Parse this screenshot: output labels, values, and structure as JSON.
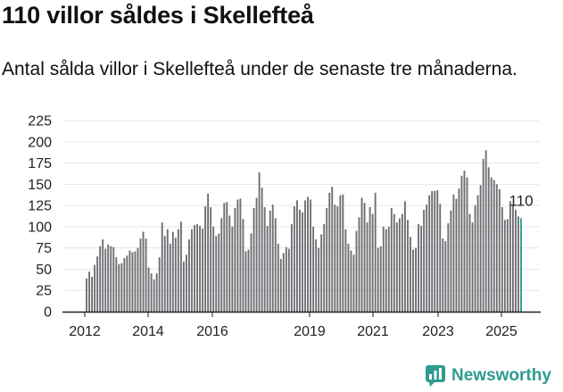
{
  "title": "110 villor såldes i Skellefteå",
  "subtitle": "Antal sålda villor i Skellefteå under de senaste tre månaderna.",
  "brand": {
    "name": "Newsworthy",
    "icon": "newsworthy-logo-icon"
  },
  "colors": {
    "bar": "#6e6e73",
    "highlight": "#2a9d8f",
    "grid": "#e5e5e5",
    "axis": "#222222",
    "brand": "#2f9b8f"
  },
  "chart_data": {
    "type": "bar",
    "title": "110 villor såldes i Skellefteå",
    "xlabel": "",
    "ylabel": "",
    "ylim": [
      0,
      225
    ],
    "yticks": [
      0,
      25,
      50,
      75,
      100,
      125,
      150,
      175,
      200,
      225
    ],
    "xticks": [
      "2012",
      "2014",
      "2016",
      "2019",
      "2021",
      "2023",
      "2025"
    ],
    "grid": true,
    "highlight_last": true,
    "end_label": "110",
    "series": [
      {
        "values": [
          null,
          39,
          47,
          41,
          55,
          65,
          77,
          85,
          74,
          79,
          77,
          76,
          64,
          56,
          57,
          63,
          66,
          72,
          70,
          71,
          75,
          86,
          94,
          86,
          52,
          45,
          38,
          45,
          64,
          105,
          89,
          97,
          80,
          94,
          87,
          97,
          106,
          59,
          67,
          85,
          97,
          102,
          103,
          101,
          98,
          124,
          139,
          123,
          100,
          89,
          92,
          110,
          128,
          129,
          113,
          100,
          122,
          132,
          133,
          109,
          71,
          73,
          92,
          122,
          134,
          164,
          146,
          123,
          101,
          119,
          126,
          110,
          80,
          62,
          69,
          76,
          74,
          103,
          124,
          131,
          120,
          117,
          131,
          135,
          132,
          100,
          85,
          75,
          91,
          103,
          122,
          140,
          147,
          126,
          124,
          137,
          138,
          97,
          80,
          72,
          67,
          95,
          111,
          134,
          128,
          105,
          123,
          115,
          140,
          75,
          77,
          100,
          97,
          100,
          122,
          115,
          105,
          110,
          115,
          130,
          108,
          88,
          73,
          75,
          103,
          101,
          120,
          126,
          137,
          142,
          142,
          143,
          127,
          86,
          83,
          104,
          119,
          138,
          133,
          145,
          160,
          166,
          158,
          115,
          105,
          125,
          137,
          149,
          180,
          190,
          170,
          158,
          155,
          150,
          144,
          123,
          108,
          109,
          130,
          126,
          120,
          112,
          110
        ]
      }
    ]
  }
}
